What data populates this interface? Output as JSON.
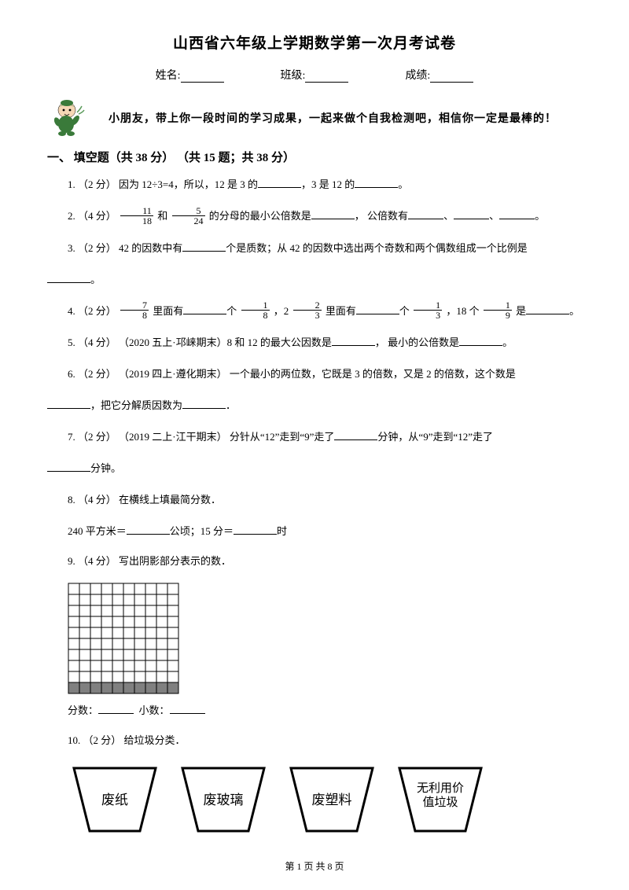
{
  "title": "山西省六年级上学期数学第一次月考试卷",
  "info": {
    "name_label": "姓名:",
    "class_label": "班级:",
    "score_label": "成绩:"
  },
  "intro": "小朋友，带上你一段时间的学习成果，一起来做个自我检测吧，相信你一定是最棒的！",
  "section": "一、 填空题（共 38 分） （共 15 题；共 38 分）",
  "q1": {
    "prefix": "1. （2 分） 因为 12÷3=4，所以，12 是 3 的",
    "mid": "，3 是 12 的",
    "suffix": "。"
  },
  "q2": {
    "part1": "2. （4 分） ",
    "f1n": "11",
    "f1d": "18",
    "and": " 和 ",
    "f2n": "5",
    "f2d": "24",
    "part2": " 的分母的最小公倍数是",
    "part3": "， 公倍数有",
    "sep": "、",
    "end": "。"
  },
  "q3": {
    "t1": "3.  （2 分）  42 的因数中有",
    "t2": "个是质数；从 42 的因数中选出两个奇数和两个偶数组成一个比例是",
    "end": "。"
  },
  "q4": {
    "p1": "4. （2 分） ",
    "f1n": "7",
    "f1d": "8",
    "p2": " 里面有",
    "p3": "个 ",
    "f2n": "1",
    "f2d": "8",
    "p4": " ，2 ",
    "f3n": "2",
    "f3d": "3",
    "p5": " 里面有",
    "p6": "个 ",
    "f4n": "1",
    "f4d": "3",
    "p7": " ，18 个 ",
    "f5n": "1",
    "f5d": "9",
    "p8": " 是",
    "end": "。"
  },
  "q5": {
    "t1": "5. （4 分） （2020 五上·邛崃期末）8 和 12 的最大公因数是",
    "t2": "， 最小的公倍数是",
    "end": "。"
  },
  "q6": {
    "t1": "6.  （2 分）  （2019 四上·遵化期末）  一个最小的两位数，它既是 3 的倍数，又是 2 的倍数，这个数是",
    "t2": "，把它分解质因数为",
    "end": "．"
  },
  "q7": {
    "t1": "7. （2 分） （2019 二上·江干期末） 分针从“12”走到“9”走了",
    "t2": "分钟，从“9”走到“12”走了",
    "t3": "分钟。"
  },
  "q8": {
    "title": "8. （4 分） 在横线上填最简分数．",
    "l1": "240 平方米＝",
    "l2": "公顷；15 分＝",
    "l3": "时"
  },
  "q9": {
    "title": "9. （4 分） 写出阴影部分表示的数．",
    "label1": "分数：",
    "label2": "小数："
  },
  "q10": {
    "title": "10. （2 分） 给垃圾分类．",
    "cups": [
      "废纸",
      "废玻璃",
      "废塑料",
      "无利用价\n值垃圾"
    ]
  },
  "grid": {
    "rows": 10,
    "cols": 10,
    "cell_size": 14,
    "shaded_row": 9,
    "fill_color": "#808080",
    "stroke_color": "#000000",
    "bg_color": "#ffffff"
  },
  "footer": "第 1 页 共 8 页"
}
